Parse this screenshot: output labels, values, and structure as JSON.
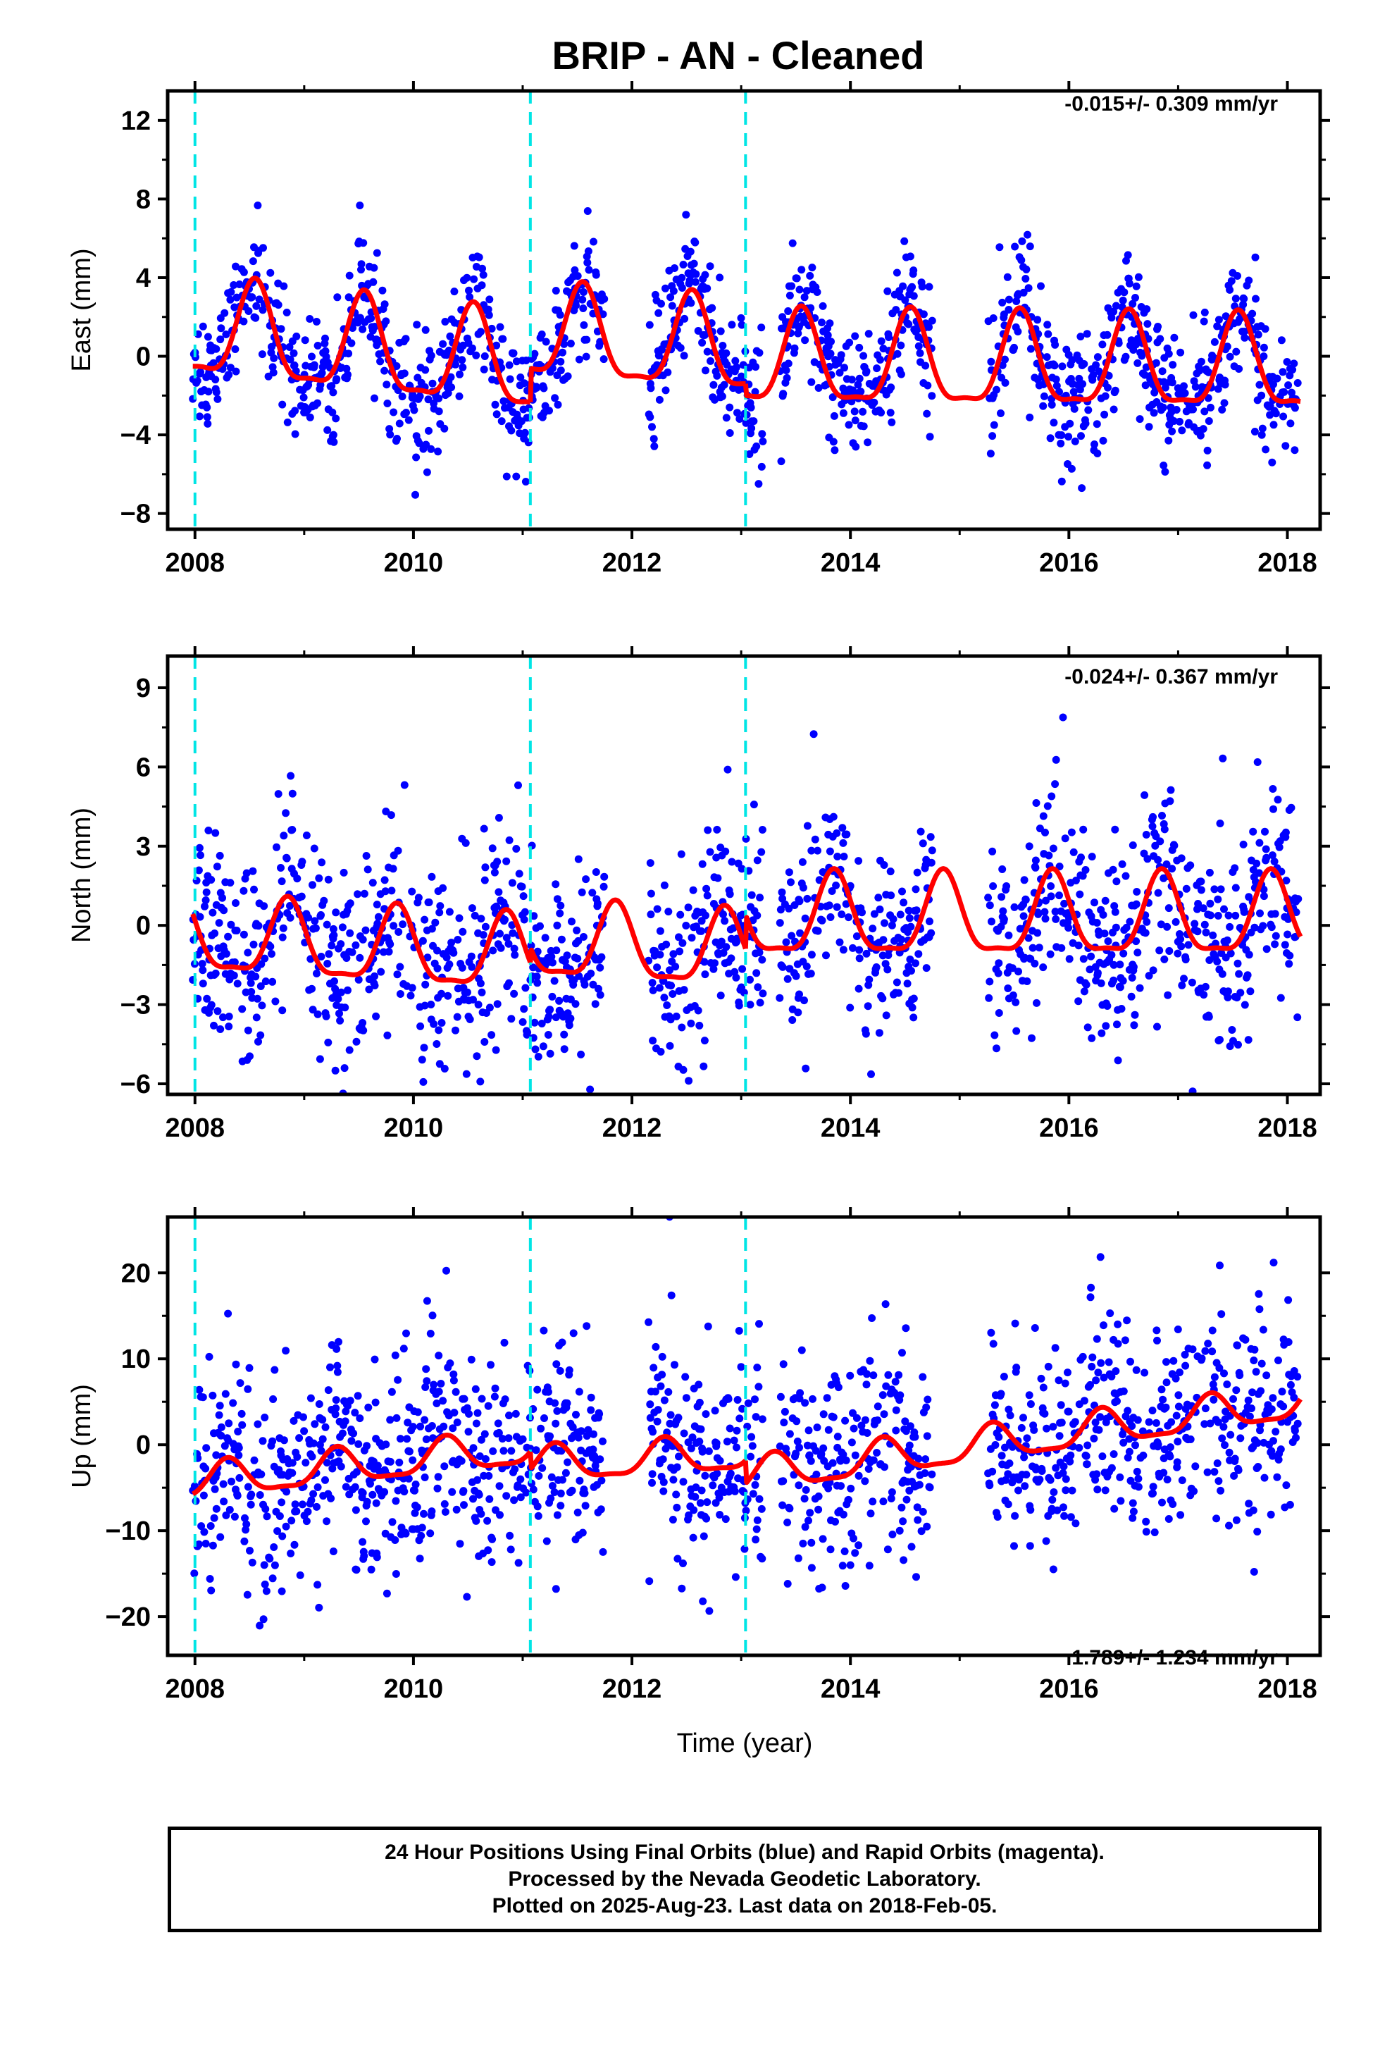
{
  "title": "BRIP  - AN - Cleaned",
  "xlabel": "Time (year)",
  "caption": [
    "24 Hour Positions Using Final Orbits (blue) and Rapid Orbits (magenta).",
    "Processed by the Nevada Geodetic Laboratory.",
    "Plotted on 2025-Aug-23. Last data on 2018-Feb-05."
  ],
  "colors": {
    "points": "#0000ff",
    "model": "#ff0000",
    "steps": "#00e5e5",
    "frame": "#000000"
  },
  "chart_data": [
    {
      "type": "scatter",
      "ylabel": "East (mm)",
      "rate": "-0.015+/- 0.309 mm/yr",
      "xlim": [
        2007.75,
        2018.3
      ],
      "ylim": [
        -8.8,
        13.5
      ],
      "xticks": [
        "2008",
        "2010",
        "2012",
        "2014",
        "2016",
        "2018"
      ],
      "yticks": [
        "−8",
        "−4",
        "0",
        "4",
        "8",
        "12"
      ],
      "xtick_values": [
        2008,
        2010,
        2012,
        2014,
        2016,
        2018
      ],
      "ytick_values": [
        -8,
        -4,
        0,
        4,
        8,
        12
      ],
      "steps": [
        2008.0,
        2011.07,
        2013.04
      ],
      "model": {
        "segments": [
          {
            "from": 2007.98,
            "to": 2011.07,
            "offset": 1.2,
            "amp": 2.4,
            "phase": 0.55,
            "trend": -0.6
          },
          {
            "from": 2011.07,
            "to": 2013.04,
            "offset": 1.0,
            "amp": 2.3,
            "phase": 0.55,
            "trend": -0.4
          },
          {
            "from": 2013.04,
            "to": 2018.12,
            "offset": -0.4,
            "amp": 2.3,
            "phase": 0.55,
            "trend": -0.05
          }
        ]
      },
      "noise": 1.6,
      "gaps": [
        [
          2011.75,
          2012.15
        ],
        [
          2013.2,
          2013.35
        ],
        [
          2014.75,
          2015.25
        ]
      ]
    },
    {
      "type": "scatter",
      "ylabel": "North (mm)",
      "rate": "-0.024+/- 0.367 mm/yr",
      "xlim": [
        2007.75,
        2018.3
      ],
      "ylim": [
        -6.4,
        10.2
      ],
      "xticks": [
        "2008",
        "2010",
        "2012",
        "2014",
        "2016",
        "2018"
      ],
      "yticks": [
        "−6",
        "−3",
        "0",
        "3",
        "6",
        "9"
      ],
      "xtick_values": [
        2008,
        2010,
        2012,
        2014,
        2016,
        2018
      ],
      "ytick_values": [
        -6,
        -3,
        0,
        3,
        6,
        9
      ],
      "steps": [
        2008.0,
        2011.07,
        2013.04
      ],
      "model": {
        "segments": [
          {
            "from": 2007.98,
            "to": 2011.07,
            "offset": -0.5,
            "amp": 1.4,
            "phase": 0.85,
            "trend": -0.25
          },
          {
            "from": 2011.07,
            "to": 2013.04,
            "offset": -0.7,
            "amp": 1.4,
            "phase": 0.85,
            "trend": -0.2
          },
          {
            "from": 2013.04,
            "to": 2018.12,
            "offset": 0.2,
            "amp": 1.5,
            "phase": 0.85,
            "trend": 0.0
          }
        ]
      },
      "noise": 1.9,
      "gaps": [
        [
          2011.75,
          2012.15
        ],
        [
          2013.2,
          2013.35
        ],
        [
          2014.75,
          2015.25
        ]
      ]
    },
    {
      "type": "scatter",
      "ylabel": "Up (mm)",
      "rate": "1.789+/- 1.234 mm/yr",
      "xlim": [
        2007.75,
        2018.3
      ],
      "ylim": [
        -24.5,
        26.5
      ],
      "xticks": [
        "2008",
        "2010",
        "2012",
        "2014",
        "2016",
        "2018"
      ],
      "yticks": [
        "−20",
        "−10",
        "0",
        "10",
        "20"
      ],
      "xtick_values": [
        2008,
        2010,
        2012,
        2014,
        2016,
        2018
      ],
      "ytick_values": [
        -20,
        -10,
        0,
        10,
        20
      ],
      "steps": [
        2008.0,
        2011.07,
        2013.04
      ],
      "model": {
        "segments": [
          {
            "from": 2007.98,
            "to": 2011.07,
            "offset": -4.5,
            "amp": 2.0,
            "phase": 0.3,
            "trend": 1.3
          },
          {
            "from": 2011.07,
            "to": 2013.04,
            "offset": -2.5,
            "amp": 2.0,
            "phase": 0.3,
            "trend": 0.7
          },
          {
            "from": 2013.04,
            "to": 2018.12,
            "offset": -3.8,
            "amp": 2.0,
            "phase": 0.3,
            "trend": 1.7
          }
        ]
      },
      "noise": 6.0,
      "gaps": [
        [
          2011.75,
          2012.15
        ],
        [
          2013.2,
          2013.35
        ],
        [
          2014.75,
          2015.25
        ]
      ]
    }
  ]
}
